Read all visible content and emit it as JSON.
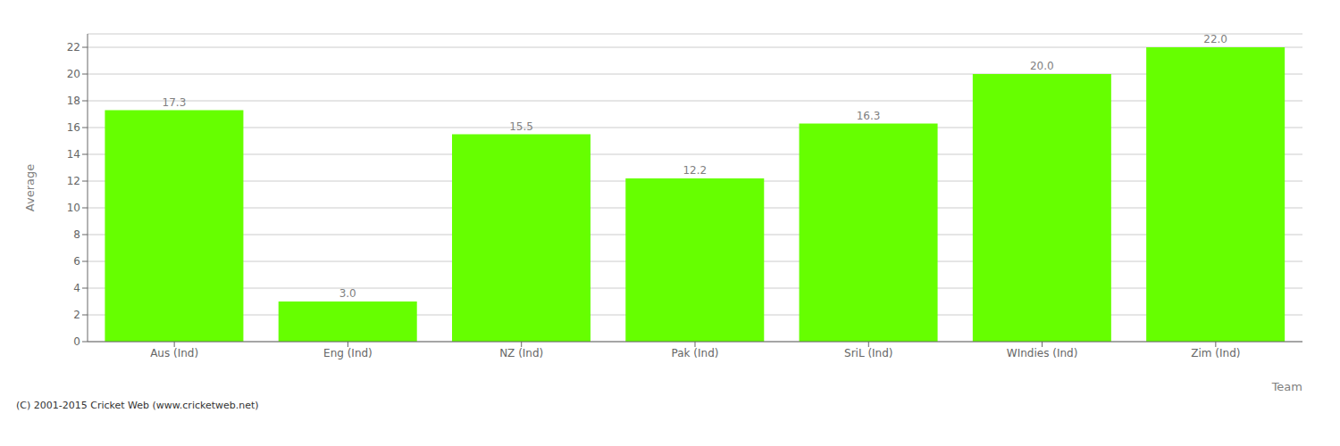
{
  "chart_data": {
    "type": "bar",
    "x_label": "Team",
    "y_label": "Average",
    "categories": [
      "Aus (Ind)",
      "Eng (Ind)",
      "NZ (Ind)",
      "Pak (Ind)",
      "SriL (Ind)",
      "WIndies (Ind)",
      "Zim (Ind)"
    ],
    "values": [
      17.3,
      3.0,
      15.5,
      12.2,
      16.3,
      20.0,
      22.0
    ],
    "value_labels": [
      "17.3",
      "3.0",
      "15.5",
      "12.2",
      "16.3",
      "20.0",
      "22.0"
    ],
    "data_labels": true,
    "color": "#66ff00",
    "ylim": [
      0,
      23
    ],
    "yticks": [
      0,
      2,
      4,
      6,
      8,
      10,
      12,
      14,
      16,
      18,
      20,
      22
    ],
    "grid": true,
    "annotations": [
      "(C) 2001-2015 Cricket Web (www.cricketweb.net)"
    ]
  }
}
